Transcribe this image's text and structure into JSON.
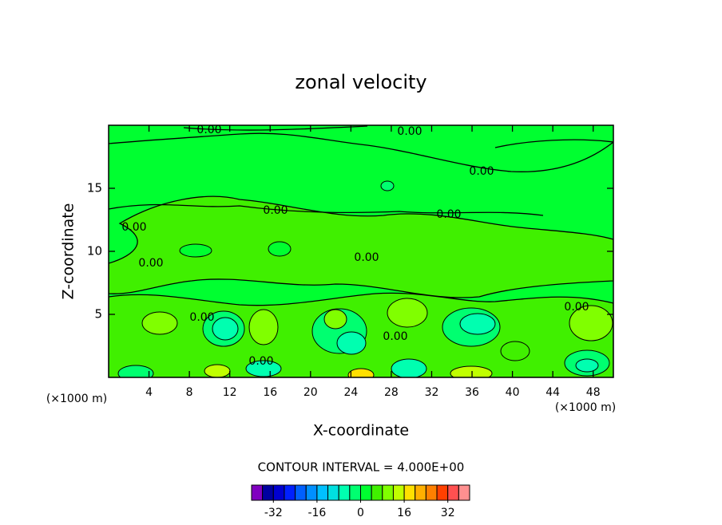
{
  "chart_data": {
    "type": "contour",
    "title": "zonal velocity",
    "x_label": "X-coordinate",
    "y_label": "Z-coordinate",
    "x_units": "(×1000 m)",
    "y_units": "(×1000 m)",
    "xlim": [
      0,
      50
    ],
    "xticks": [
      4,
      8,
      12,
      16,
      20,
      24,
      28,
      32,
      36,
      40,
      44,
      48
    ],
    "ylim": [
      0,
      20
    ],
    "yticks": [
      5,
      10,
      15
    ],
    "contour_interval_label": "CONTOUR INTERVAL = 4.000E+00",
    "contour_labels": [
      {
        "value": 0,
        "label": "0.00"
      },
      {
        "value": 0,
        "label": "0.00"
      },
      {
        "value": 0,
        "label": "0.00"
      },
      {
        "value": 0,
        "label": "0.00"
      },
      {
        "value": 0,
        "label": "0.00"
      },
      {
        "value": 0,
        "label": "0.00"
      },
      {
        "value": 0,
        "label": "0.00"
      },
      {
        "value": 0,
        "label": "0.00"
      },
      {
        "value": 0,
        "label": "0.00"
      },
      {
        "value": 0,
        "label": "0.00"
      },
      {
        "value": 0,
        "label": "0.00"
      },
      {
        "value": 0,
        "label": "0.00"
      }
    ],
    "colorbar": {
      "levels": [
        -40,
        -36,
        -32,
        -28,
        -24,
        -20,
        -16,
        -12,
        -8,
        -4,
        0,
        4,
        8,
        12,
        16,
        20,
        24,
        28,
        32,
        36,
        40
      ],
      "colors": [
        "#8000c0",
        "#0000a0",
        "#0000d0",
        "#0020ff",
        "#0060ff",
        "#0090ff",
        "#00c0ff",
        "#00e0e0",
        "#00ffb0",
        "#00ff70",
        "#00ff30",
        "#40f000",
        "#80ff00",
        "#c0ff00",
        "#ffe000",
        "#ffb000",
        "#ff8000",
        "#ff4000",
        "#ff5050",
        "#ff9090"
      ],
      "ticks": [
        -32,
        -16,
        0,
        16,
        32
      ]
    }
  }
}
